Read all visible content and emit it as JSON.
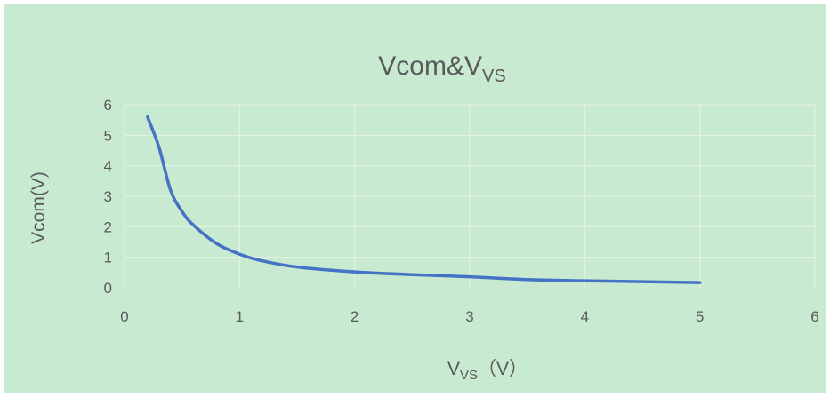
{
  "chart_data": {
    "type": "line",
    "title": {
      "main": "Vcom&V",
      "sub": "VS"
    },
    "xlabel": {
      "main": "V",
      "sub": "VS",
      "unit": "（V）"
    },
    "ylabel": "Vcom(V)",
    "xlim": [
      0,
      6
    ],
    "ylim": [
      0,
      6
    ],
    "x_ticks": [
      "0",
      "1",
      "2",
      "3",
      "4",
      "5",
      "6"
    ],
    "y_ticks": [
      "0",
      "1",
      "2",
      "3",
      "4",
      "5",
      "6"
    ],
    "grid": true,
    "legend": "none",
    "series": [
      {
        "color": "#4472c4",
        "x": [
          0.2,
          0.3,
          0.4,
          0.5,
          0.6,
          0.8,
          1.0,
          1.2,
          1.5,
          2.0,
          2.5,
          3.0,
          3.5,
          4.0,
          4.5,
          5.0
        ],
        "y": [
          5.6,
          4.6,
          3.2,
          2.5,
          2.05,
          1.45,
          1.1,
          0.88,
          0.68,
          0.52,
          0.43,
          0.36,
          0.27,
          0.23,
          0.2,
          0.17
        ]
      }
    ]
  }
}
